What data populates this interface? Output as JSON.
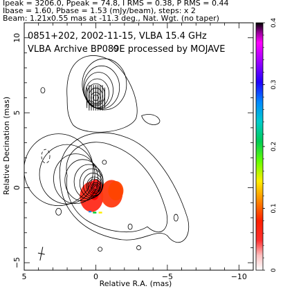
{
  "header": {
    "line1": "Ipeak = 3206.0, Ppeak = 74.8, I RMS = 0.38, P RMS = 0.44",
    "line2": "Ibase = 1.60, Pbase = 1.53 (mJy/beam), steps: x 2",
    "line3": "Beam: 1.21x0.55 mas at -11.3 deg., Nat. Wgt. (no taper)"
  },
  "chart_data": {
    "type": "contour",
    "annotation_line1": "0851+202, 2002-11-15, VLBA 15.4 GHz",
    "annotation_line2": "VLBA Archive BP089E processed by MOJAVE",
    "xlabel": "Relative R.A. (mas)",
    "ylabel": "Relative Decination (mas)",
    "xlim": [
      5,
      -11
    ],
    "ylim": [
      -5.5,
      11
    ],
    "xticks": [
      5,
      0,
      -5,
      -10
    ],
    "xtick_labels": [
      "5",
      "0",
      "−5",
      "−10"
    ],
    "yticks": [
      -5,
      0,
      5,
      10
    ],
    "ytick_labels": [
      "−5",
      "0",
      "5",
      "10"
    ],
    "colorbar": {
      "range": [
        0,
        0.4
      ],
      "ticks": [
        0,
        0.1,
        0.2,
        0.3,
        0.4
      ],
      "tick_labels": [
        "0",
        "0.1",
        "0.2",
        "0.3",
        "0.4"
      ],
      "colors": [
        "#ffffff",
        "#ff8080",
        "#ff0000",
        "#ff6600",
        "#ffcc00",
        "#ffff00",
        "#66ff00",
        "#00cc33",
        "#00cccc",
        "#0099ff",
        "#0000ff",
        "#8000ff",
        "#ff00ff",
        "#cc00cc",
        "#000000"
      ]
    },
    "features": [
      {
        "name": "core",
        "x": 0,
        "y": 0
      },
      {
        "name": "northern-feature",
        "x": 0,
        "y": 6
      }
    ],
    "beam": {
      "major_mas": 1.21,
      "minor_mas": 0.55,
      "pa_deg": -11.3,
      "x": 3.8,
      "y": -4.4
    }
  }
}
